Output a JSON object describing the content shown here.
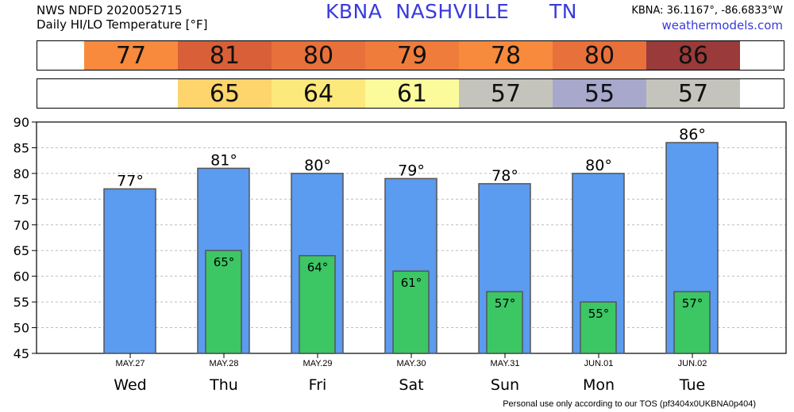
{
  "header": {
    "line1": "NWS NDFD 2020052715",
    "line2": "Daily HI/LO Temperature [°F]",
    "station_title": "KBNA  NASHVILLE      TN",
    "coords": "KBNA: 36.1167°, -86.6833°W",
    "site": "weathermodels.com"
  },
  "strips": {
    "hi": [
      {
        "text": "77",
        "color": "#f78a3c"
      },
      {
        "text": "81",
        "color": "#d95f38"
      },
      {
        "text": "80",
        "color": "#e8703a"
      },
      {
        "text": "79",
        "color": "#f07c3b"
      },
      {
        "text": "78",
        "color": "#f78a3c"
      },
      {
        "text": "80",
        "color": "#e8703a"
      },
      {
        "text": "86",
        "color": "#9a3a3a"
      }
    ],
    "lo": [
      {
        "text": "",
        "color": "#ffffff"
      },
      {
        "text": "65",
        "color": "#fdd56c"
      },
      {
        "text": "64",
        "color": "#fde87c"
      },
      {
        "text": "61",
        "color": "#fbfb9c"
      },
      {
        "text": "57",
        "color": "#c4c4bc"
      },
      {
        "text": "55",
        "color": "#a8a8cc"
      },
      {
        "text": "57",
        "color": "#c4c4bc"
      }
    ]
  },
  "chart_data": {
    "type": "bar",
    "categories": [
      "Wed",
      "Thu",
      "Fri",
      "Sat",
      "Sun",
      "Mon",
      "Tue"
    ],
    "dates": [
      "MAY.27",
      "MAY.28",
      "MAY.29",
      "MAY.30",
      "MAY.31",
      "JUN.01",
      "JUN.02"
    ],
    "series": [
      {
        "values": [
          77,
          81,
          80,
          79,
          78,
          80,
          86
        ],
        "color": "#5b9bf0"
      },
      {
        "values": [
          null,
          65,
          64,
          61,
          57,
          55,
          57
        ],
        "color": "#3cc764"
      }
    ],
    "hi_labels": [
      "77°",
      "81°",
      "80°",
      "79°",
      "78°",
      "80°",
      "86°"
    ],
    "lo_labels": [
      "",
      "65°",
      "64°",
      "61°",
      "57°",
      "55°",
      "57°"
    ],
    "ylim": [
      45,
      90
    ],
    "yticks": [
      "45",
      "50",
      "55",
      "60",
      "65",
      "70",
      "75",
      "80",
      "85",
      "90"
    ],
    "grid": true
  },
  "footer": "Personal use only according to our TOS (pf3404x0UKBNA0p404)"
}
